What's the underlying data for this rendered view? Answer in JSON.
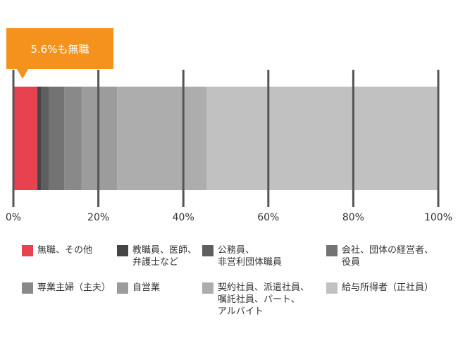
{
  "callout": {
    "text": "5.6%も無職"
  },
  "colors": {
    "gridline": "#555555",
    "callout": "#f5921e",
    "callout_text": "#ffffff"
  },
  "chart_data": {
    "type": "bar",
    "orientation": "horizontal",
    "stacked": true,
    "title": "",
    "xlabel": "",
    "ylabel": "",
    "xlim": [
      0,
      100
    ],
    "x_ticks": [
      "0%",
      "20%",
      "40%",
      "60%",
      "80%",
      "100%"
    ],
    "x_tick_values": [
      0,
      20,
      40,
      60,
      80,
      100
    ],
    "grid": true,
    "legend_position": "bottom",
    "series": [
      {
        "name": "無職、その他",
        "value": 5.6,
        "color": "#e8414f"
      },
      {
        "name": "教職員、医師、\n弁護士など",
        "value": 1.0,
        "color": "#454545"
      },
      {
        "name": "公務員、\n非営利団体職員",
        "value": 1.8,
        "color": "#5e5e5e"
      },
      {
        "name": "会社、団体の経営者、\n役員",
        "value": 3.6,
        "color": "#737373"
      },
      {
        "name": "専業主婦（主夫）",
        "value": 4.0,
        "color": "#898989"
      },
      {
        "name": "自営業",
        "value": 8.4,
        "color": "#9c9c9c"
      },
      {
        "name": "契約社員、派遣社員、\n嘱託社員、パート、\nアルバイト",
        "value": 21.1,
        "color": "#adadad"
      },
      {
        "name": "給与所得者（正社員）",
        "value": 54.5,
        "color": "#c1c1c1"
      }
    ]
  }
}
